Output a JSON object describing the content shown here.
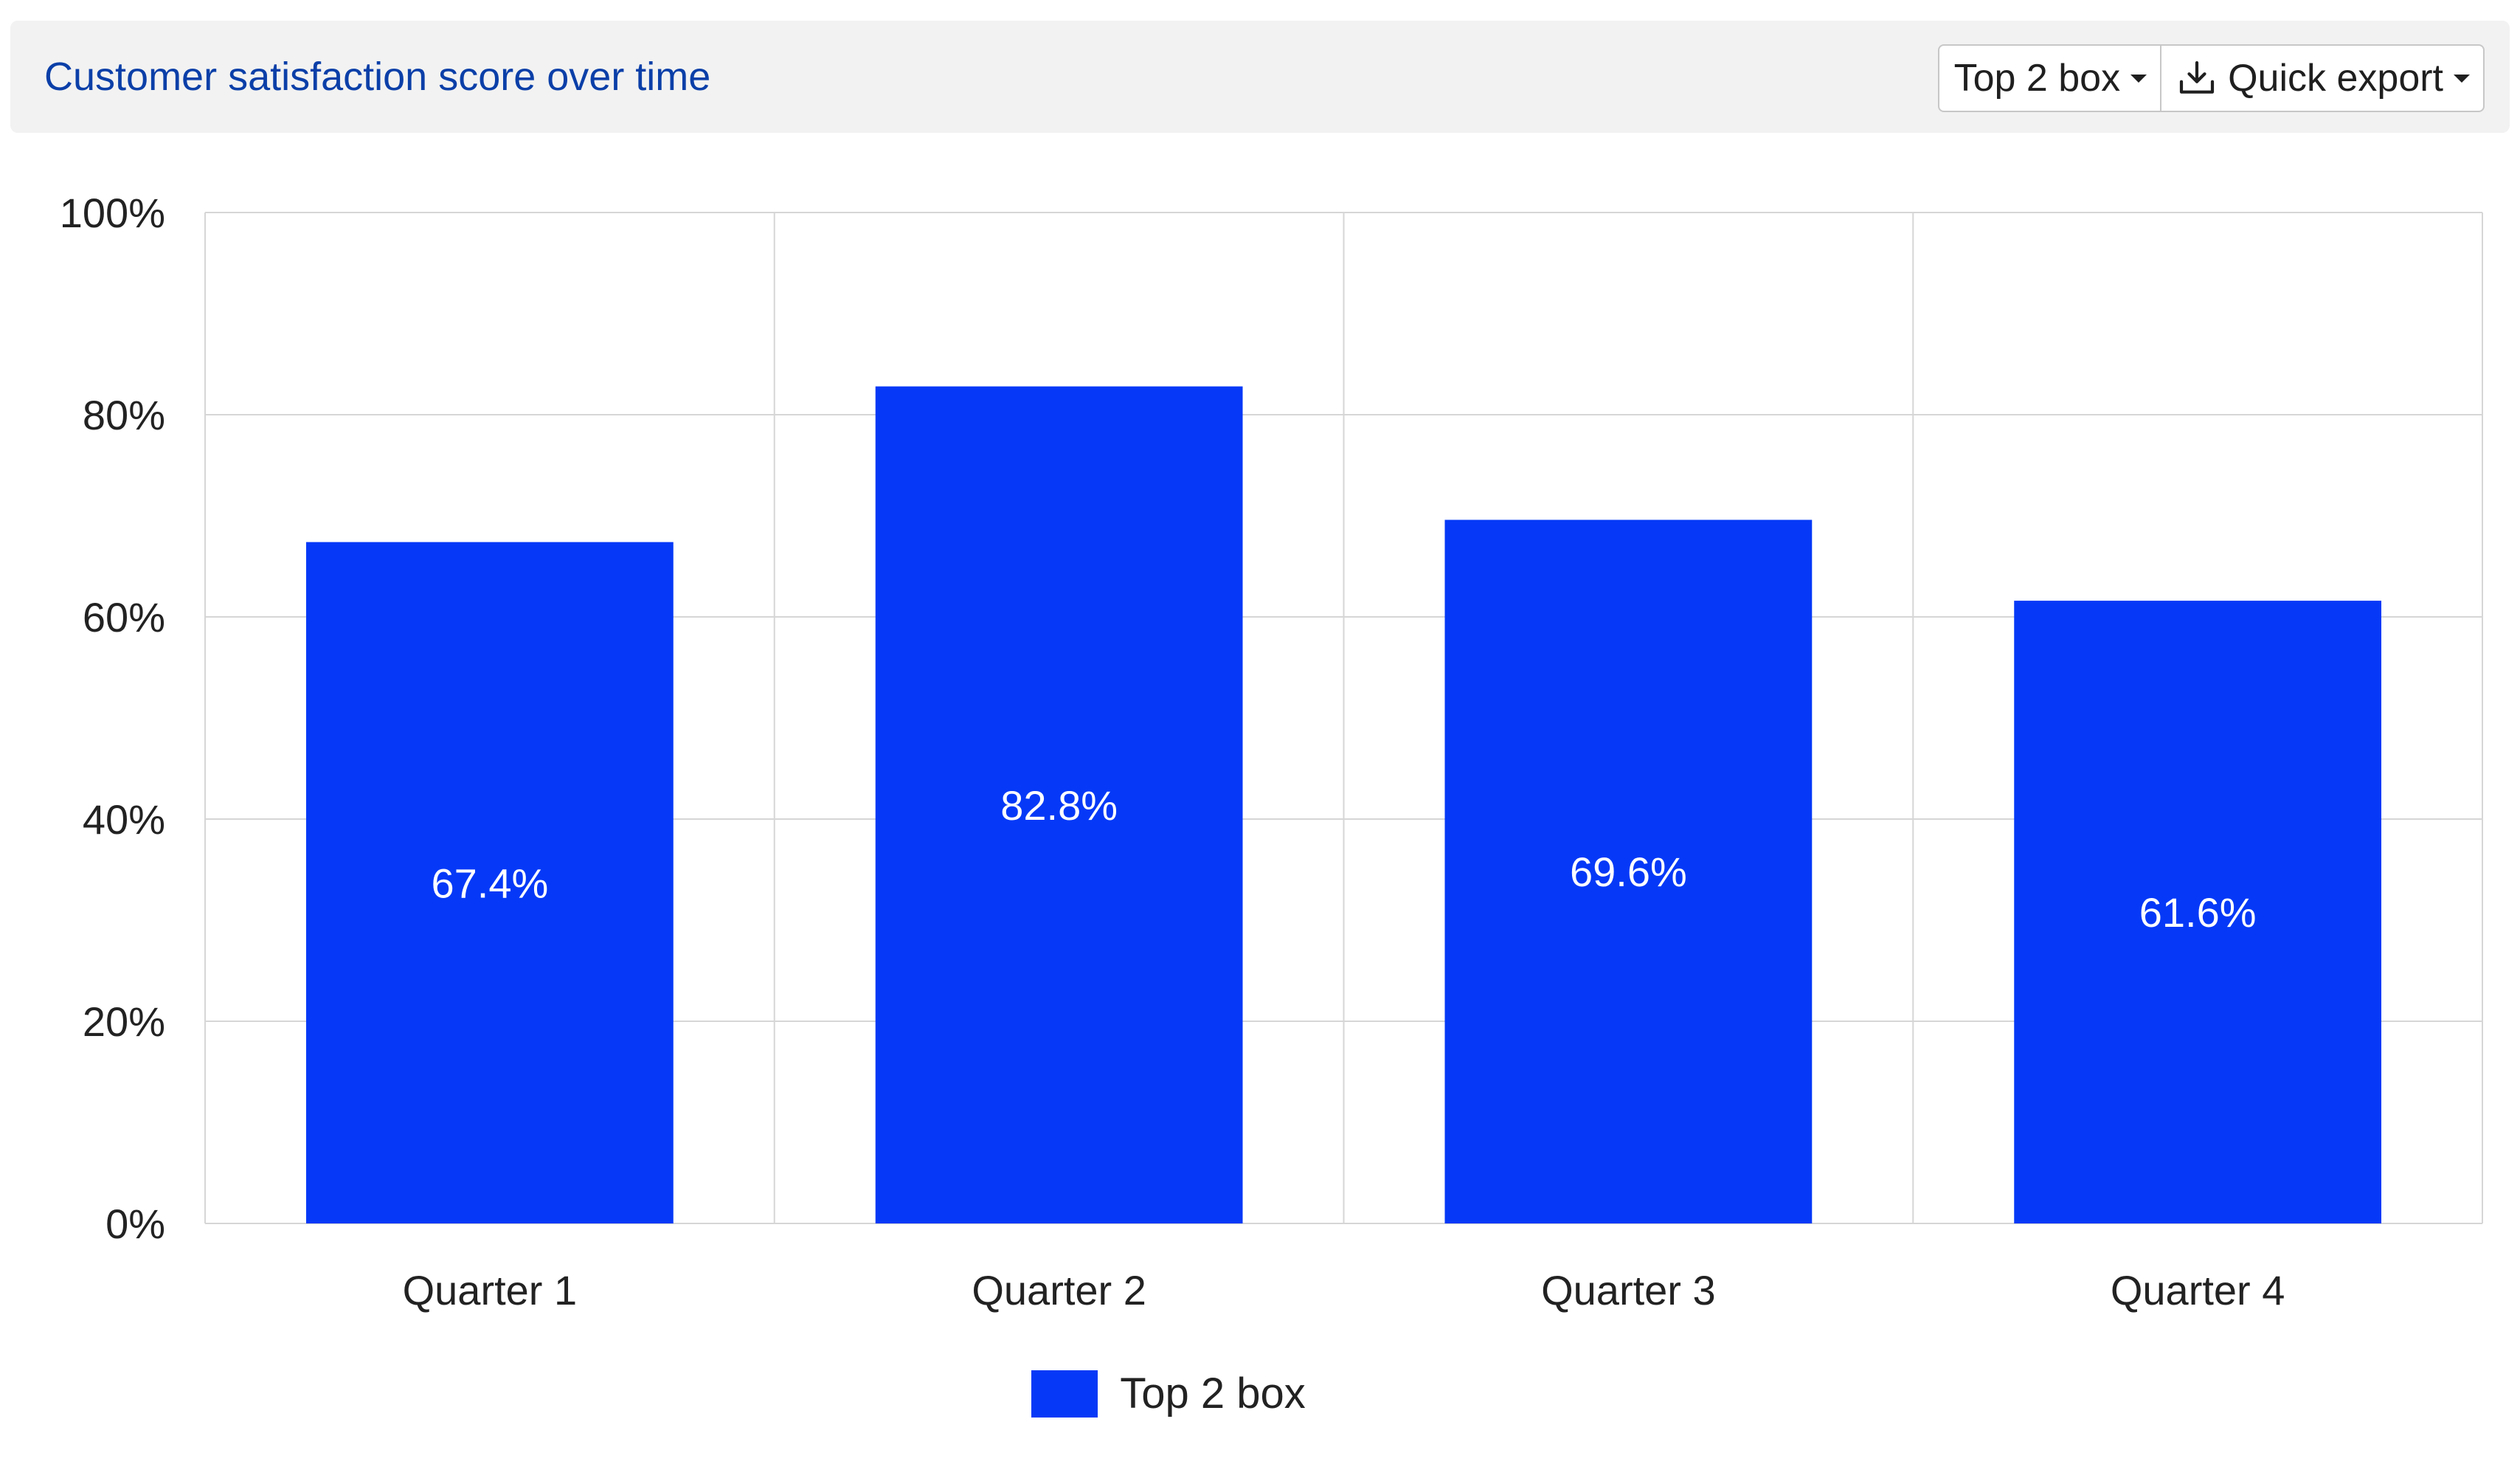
{
  "header": {
    "title": "Customer satisfaction score over time",
    "metric_dropdown_label": "Top 2 box",
    "export_button_label": "Quick export",
    "export_icon": "download-icon",
    "dropdown_icon": "caret-down-icon"
  },
  "colors": {
    "bar": "#0539f7",
    "title": "#0b3fa8",
    "grid": "#d6d6d6",
    "header_bg": "#f2f2f2"
  },
  "chart_data": {
    "type": "bar",
    "title": "Customer satisfaction score over time",
    "categories": [
      "Quarter 1",
      "Quarter 2",
      "Quarter 3",
      "Quarter 4"
    ],
    "series": [
      {
        "name": "Top 2 box",
        "values": [
          67.4,
          82.8,
          69.6,
          61.6
        ],
        "value_labels": [
          "67.4%",
          "82.8%",
          "69.6%",
          "61.6%"
        ]
      }
    ],
    "ylim": [
      0,
      100
    ],
    "yticks": [
      0,
      20,
      40,
      60,
      80,
      100
    ],
    "ytick_labels": [
      "0%",
      "20%",
      "40%",
      "60%",
      "80%",
      "100%"
    ],
    "xlabel": "",
    "ylabel": "",
    "grid": true,
    "legend_position": "bottom-center"
  }
}
